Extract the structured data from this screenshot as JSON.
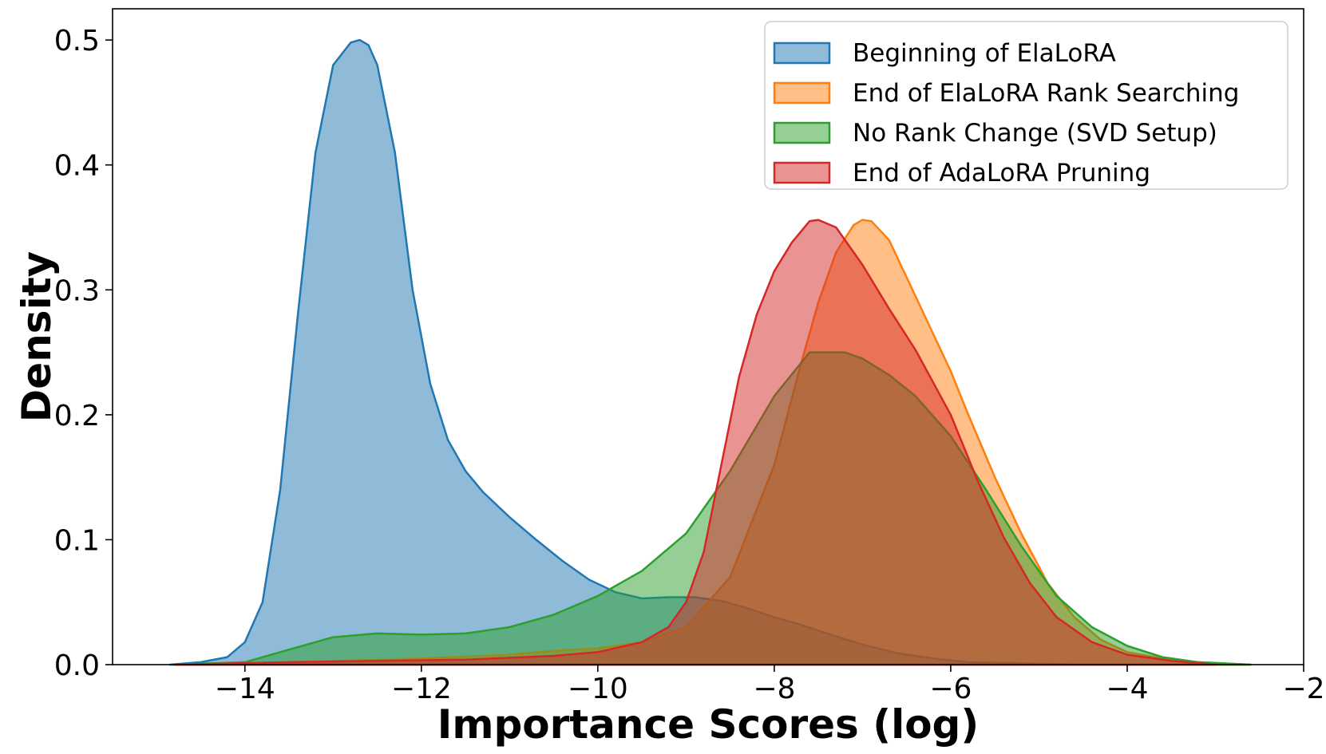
{
  "chart_data": {
    "type": "area",
    "title": "",
    "xlabel": "Importance Scores (log)",
    "ylabel": "Density",
    "xlim": [
      -15.5,
      -2.0
    ],
    "ylim": [
      0.0,
      0.525
    ],
    "x_ticks": [
      -14,
      -12,
      -10,
      -8,
      -6,
      -4,
      -2
    ],
    "x_tick_labels": [
      "−14",
      "−12",
      "−10",
      "−8",
      "−6",
      "−4",
      "−2"
    ],
    "y_ticks": [
      0.0,
      0.1,
      0.2,
      0.3,
      0.4,
      0.5
    ],
    "y_tick_labels": [
      "0.0",
      "0.1",
      "0.2",
      "0.3",
      "0.4",
      "0.5"
    ],
    "grid": false,
    "legend_position": "top-right",
    "series": [
      {
        "name": "Beginning of ElaLoRA",
        "color": "#1f77b4",
        "x": [
          -14.85,
          -14.5,
          -14.2,
          -14.0,
          -13.8,
          -13.6,
          -13.4,
          -13.2,
          -13.0,
          -12.8,
          -12.7,
          -12.6,
          -12.5,
          -12.3,
          -12.1,
          -11.9,
          -11.7,
          -11.5,
          -11.3,
          -11.0,
          -10.7,
          -10.4,
          -10.1,
          -9.8,
          -9.5,
          -9.2,
          -8.9,
          -8.6,
          -8.3,
          -8.0,
          -7.7,
          -7.4,
          -7.0,
          -6.6,
          -6.2,
          -5.8,
          -5.2,
          -4.5,
          -4.0
        ],
        "y": [
          0.0,
          0.002,
          0.006,
          0.018,
          0.05,
          0.14,
          0.28,
          0.41,
          0.48,
          0.498,
          0.5,
          0.496,
          0.48,
          0.41,
          0.3,
          0.225,
          0.18,
          0.155,
          0.138,
          0.118,
          0.1,
          0.083,
          0.068,
          0.058,
          0.053,
          0.054,
          0.054,
          0.051,
          0.045,
          0.038,
          0.032,
          0.025,
          0.016,
          0.009,
          0.005,
          0.002,
          0.001,
          0.0,
          0.0
        ]
      },
      {
        "name": "End of ElaLoRA Rank Searching",
        "color": "#ff7f0e",
        "x": [
          -14.8,
          -13.5,
          -12.0,
          -11.0,
          -10.5,
          -10.0,
          -9.5,
          -9.0,
          -8.5,
          -8.0,
          -7.7,
          -7.5,
          -7.3,
          -7.1,
          -7.0,
          -6.9,
          -6.7,
          -6.5,
          -6.2,
          -6.0,
          -5.8,
          -5.5,
          -5.2,
          -4.9,
          -4.6,
          -4.3,
          -4.0,
          -3.6,
          -3.2,
          -2.6
        ],
        "y": [
          0.0,
          0.002,
          0.005,
          0.008,
          0.011,
          0.013,
          0.018,
          0.03,
          0.07,
          0.16,
          0.24,
          0.29,
          0.33,
          0.352,
          0.356,
          0.355,
          0.34,
          0.31,
          0.265,
          0.235,
          0.2,
          0.15,
          0.105,
          0.065,
          0.038,
          0.02,
          0.01,
          0.005,
          0.002,
          0.0
        ]
      },
      {
        "name": "No Rank Change (SVD Setup)",
        "color": "#2ca02c",
        "x": [
          -14.8,
          -14.0,
          -13.5,
          -13.0,
          -12.5,
          -12.0,
          -11.5,
          -11.0,
          -10.5,
          -10.0,
          -9.5,
          -9.0,
          -8.5,
          -8.0,
          -7.6,
          -7.2,
          -7.0,
          -6.7,
          -6.4,
          -6.0,
          -5.6,
          -5.2,
          -4.8,
          -4.4,
          -4.0,
          -3.6,
          -3.2,
          -2.6
        ],
        "y": [
          0.0,
          0.002,
          0.012,
          0.022,
          0.025,
          0.024,
          0.025,
          0.03,
          0.04,
          0.055,
          0.075,
          0.105,
          0.155,
          0.215,
          0.25,
          0.25,
          0.245,
          0.232,
          0.215,
          0.183,
          0.14,
          0.095,
          0.055,
          0.03,
          0.015,
          0.006,
          0.002,
          0.0
        ]
      },
      {
        "name": "End of AdaLoRA Pruning",
        "color": "#d62728",
        "x": [
          -14.8,
          -13.5,
          -12.5,
          -11.5,
          -10.5,
          -10.0,
          -9.5,
          -9.2,
          -9.0,
          -8.8,
          -8.6,
          -8.4,
          -8.2,
          -8.0,
          -7.8,
          -7.6,
          -7.5,
          -7.3,
          -7.0,
          -6.7,
          -6.4,
          -6.0,
          -5.7,
          -5.4,
          -5.1,
          -4.8,
          -4.4,
          -4.0,
          -3.5,
          -3.0
        ],
        "y": [
          0.0,
          0.002,
          0.003,
          0.004,
          0.007,
          0.01,
          0.018,
          0.03,
          0.05,
          0.09,
          0.16,
          0.23,
          0.28,
          0.315,
          0.338,
          0.355,
          0.356,
          0.35,
          0.32,
          0.285,
          0.252,
          0.2,
          0.148,
          0.102,
          0.065,
          0.038,
          0.018,
          0.008,
          0.003,
          0.0
        ]
      }
    ]
  }
}
